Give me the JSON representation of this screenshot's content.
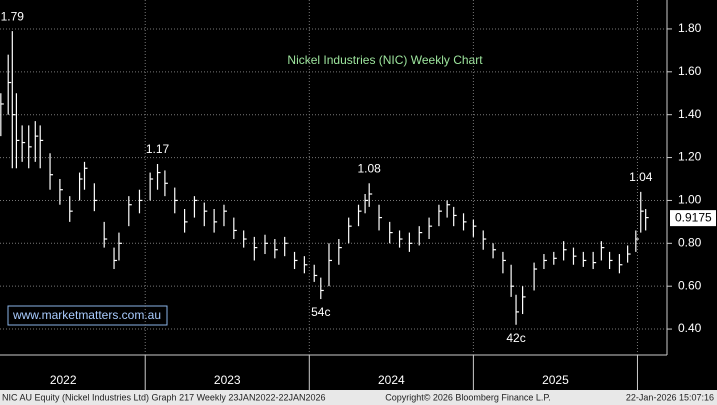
{
  "chart_data": {
    "type": "hlc",
    "title": "Nickel Industries (NIC) Weekly Chart",
    "watermark": "www.marketmatters.com.au",
    "footer_left": "NIC AU Equity (Nickel Industries Ltd) Graph 217 Weekly 23JAN2022-22JAN2026",
    "footer_center": "Copyright© 2026 Bloomberg Finance L.P.",
    "footer_right": "22-Jan-2026 15:07:16",
    "color": "#ffffff",
    "grid": true,
    "xlim": [
      2022.115,
      2026.18
    ],
    "xticks": [
      {
        "value": 2022.5,
        "label": "2022"
      },
      {
        "value": 2023.5,
        "label": "2023"
      },
      {
        "value": 2024.5,
        "label": "2024"
      },
      {
        "value": 2025.5,
        "label": "2025"
      }
    ],
    "ylim": [
      0.279,
      1.935
    ],
    "yticks": [
      {
        "value": 0.4,
        "label": "0.40"
      },
      {
        "value": 0.6,
        "label": "0.60"
      },
      {
        "value": 0.8,
        "label": "0.80"
      },
      {
        "value": 1.0,
        "label": "1.00"
      },
      {
        "value": 1.2,
        "label": "1.20"
      },
      {
        "value": 1.4,
        "label": "1.40"
      },
      {
        "value": 1.6,
        "label": "1.60"
      },
      {
        "value": 1.8,
        "label": "1.80"
      }
    ],
    "last_price": 0.9175,
    "annotations": [
      {
        "label": "1.79",
        "x": 2022.19,
        "value": 1.79,
        "position": "above"
      },
      {
        "label": "1.17",
        "x": 2023.075,
        "value": 1.17,
        "position": "above"
      },
      {
        "label": "54c",
        "x": 2024.07,
        "value": 0.54,
        "position": "below"
      },
      {
        "label": "1.08",
        "x": 2024.365,
        "value": 1.08,
        "position": "above"
      },
      {
        "label": "42c",
        "x": 2025.26,
        "value": 0.42,
        "position": "below"
      },
      {
        "label": "1.04",
        "x": 2026.02,
        "value": 1.04,
        "position": "above"
      }
    ],
    "x": [
      2022.12,
      2022.165,
      2022.19,
      2022.215,
      2022.25,
      2022.29,
      2022.33,
      2022.36,
      2022.42,
      2022.48,
      2022.54,
      2022.6,
      2022.63,
      2022.69,
      2022.75,
      2022.81,
      2022.84,
      2022.9,
      2022.965,
      2023.03,
      2023.075,
      2023.12,
      2023.18,
      2023.24,
      2023.3,
      2023.36,
      2023.42,
      2023.48,
      2023.54,
      2023.6,
      2023.665,
      2023.73,
      2023.79,
      2023.85,
      2023.91,
      2023.97,
      2024.03,
      2024.07,
      2024.12,
      2024.18,
      2024.24,
      2024.3,
      2024.34,
      2024.365,
      2024.425,
      2024.49,
      2024.55,
      2024.61,
      2024.67,
      2024.73,
      2024.79,
      2024.84,
      2024.88,
      2024.94,
      2025.0,
      2025.06,
      2025.12,
      2025.18,
      2025.23,
      2025.26,
      2025.3,
      2025.37,
      2025.43,
      2025.49,
      2025.55,
      2025.61,
      2025.67,
      2025.73,
      2025.78,
      2025.83,
      2025.89,
      2025.94,
      2025.99,
      2026.02,
      2026.05
    ],
    "close": [
      1.45,
      1.55,
      1.4,
      1.28,
      1.27,
      1.25,
      1.3,
      1.28,
      1.12,
      1.05,
      0.95,
      1.1,
      1.15,
      1.0,
      0.82,
      0.72,
      0.8,
      0.98,
      1.0,
      1.1,
      1.13,
      1.08,
      1.0,
      0.9,
      1.0,
      0.95,
      0.9,
      0.95,
      0.86,
      0.82,
      0.78,
      0.8,
      0.77,
      0.8,
      0.72,
      0.7,
      0.65,
      0.58,
      0.72,
      0.78,
      0.88,
      0.95,
      1.0,
      1.03,
      0.92,
      0.85,
      0.82,
      0.8,
      0.85,
      0.88,
      0.95,
      0.98,
      0.93,
      0.9,
      0.88,
      0.82,
      0.77,
      0.72,
      0.6,
      0.48,
      0.55,
      0.68,
      0.72,
      0.73,
      0.77,
      0.74,
      0.72,
      0.71,
      0.78,
      0.72,
      0.7,
      0.75,
      0.82,
      0.95,
      0.92
    ],
    "high": [
      1.5,
      1.68,
      1.79,
      1.5,
      1.35,
      1.35,
      1.37,
      1.35,
      1.22,
      1.1,
      1.02,
      1.13,
      1.18,
      1.08,
      0.9,
      0.78,
      0.85,
      1.02,
      1.05,
      1.13,
      1.17,
      1.14,
      1.06,
      0.96,
      1.02,
      0.99,
      0.96,
      0.98,
      0.92,
      0.86,
      0.83,
      0.84,
      0.82,
      0.83,
      0.76,
      0.74,
      0.7,
      0.64,
      0.8,
      0.82,
      0.92,
      0.98,
      1.03,
      1.08,
      0.98,
      0.9,
      0.86,
      0.85,
      0.88,
      0.92,
      0.98,
      1.0,
      0.97,
      0.94,
      0.91,
      0.86,
      0.8,
      0.76,
      0.7,
      0.56,
      0.6,
      0.71,
      0.75,
      0.76,
      0.81,
      0.78,
      0.76,
      0.76,
      0.81,
      0.76,
      0.75,
      0.79,
      0.86,
      1.04,
      0.96
    ],
    "low": [
      1.3,
      1.4,
      1.15,
      1.15,
      1.18,
      1.15,
      1.18,
      1.15,
      1.05,
      0.98,
      0.9,
      1.0,
      1.05,
      0.95,
      0.78,
      0.68,
      0.72,
      0.88,
      0.94,
      1.0,
      1.05,
      1.02,
      0.94,
      0.85,
      0.92,
      0.88,
      0.85,
      0.88,
      0.82,
      0.78,
      0.72,
      0.75,
      0.73,
      0.74,
      0.68,
      0.66,
      0.62,
      0.54,
      0.6,
      0.7,
      0.8,
      0.88,
      0.94,
      0.97,
      0.86,
      0.8,
      0.78,
      0.76,
      0.79,
      0.82,
      0.88,
      0.92,
      0.88,
      0.86,
      0.83,
      0.77,
      0.73,
      0.66,
      0.55,
      0.42,
      0.47,
      0.58,
      0.68,
      0.7,
      0.72,
      0.7,
      0.69,
      0.68,
      0.72,
      0.68,
      0.66,
      0.71,
      0.76,
      0.85,
      0.86
    ]
  }
}
